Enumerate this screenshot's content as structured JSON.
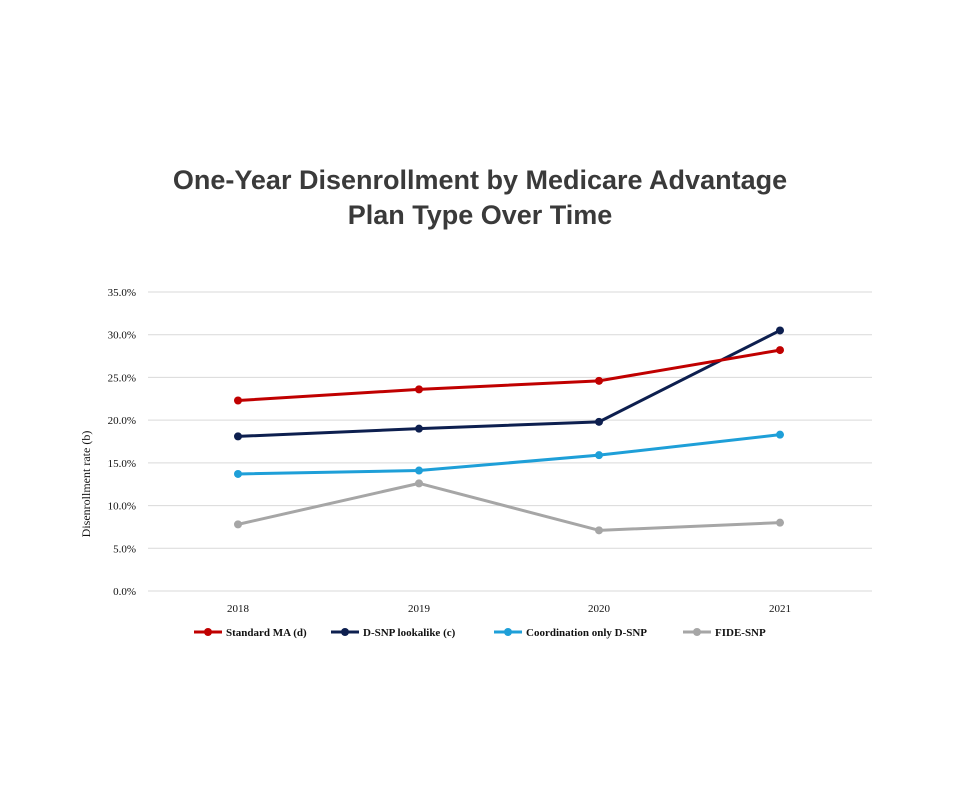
{
  "chart_data": {
    "type": "line",
    "title_line1": "One-Year Disenrollment by Medicare Advantage",
    "title_line2": "Plan Type Over Time",
    "xlabel": "",
    "ylabel": "Disenrollment rate (b)",
    "categories": [
      "2018",
      "2019",
      "2020",
      "2021"
    ],
    "ylim": [
      0,
      35
    ],
    "yticks": [
      0,
      5,
      10,
      15,
      20,
      25,
      30,
      35
    ],
    "ytick_labels": [
      "0.0%",
      "5.0%",
      "10.0%",
      "15.0%",
      "20.0%",
      "25.0%",
      "30.0%",
      "35.0%"
    ],
    "grid": true,
    "legend_position": "bottom",
    "series": [
      {
        "name": "Standard MA (d)",
        "color": "#c00000",
        "values": [
          22.3,
          23.6,
          24.6,
          28.2
        ]
      },
      {
        "name": "D-SNP lookalike (c)",
        "color": "#0d1f4f",
        "values": [
          18.1,
          19.0,
          19.8,
          30.5
        ]
      },
      {
        "name": "Coordination only D-SNP",
        "color": "#1e9fd8",
        "values": [
          13.7,
          14.1,
          15.9,
          18.3
        ]
      },
      {
        "name": "FIDE-SNP",
        "color": "#a6a6a6",
        "values": [
          7.8,
          12.6,
          7.1,
          8.0
        ]
      }
    ]
  }
}
